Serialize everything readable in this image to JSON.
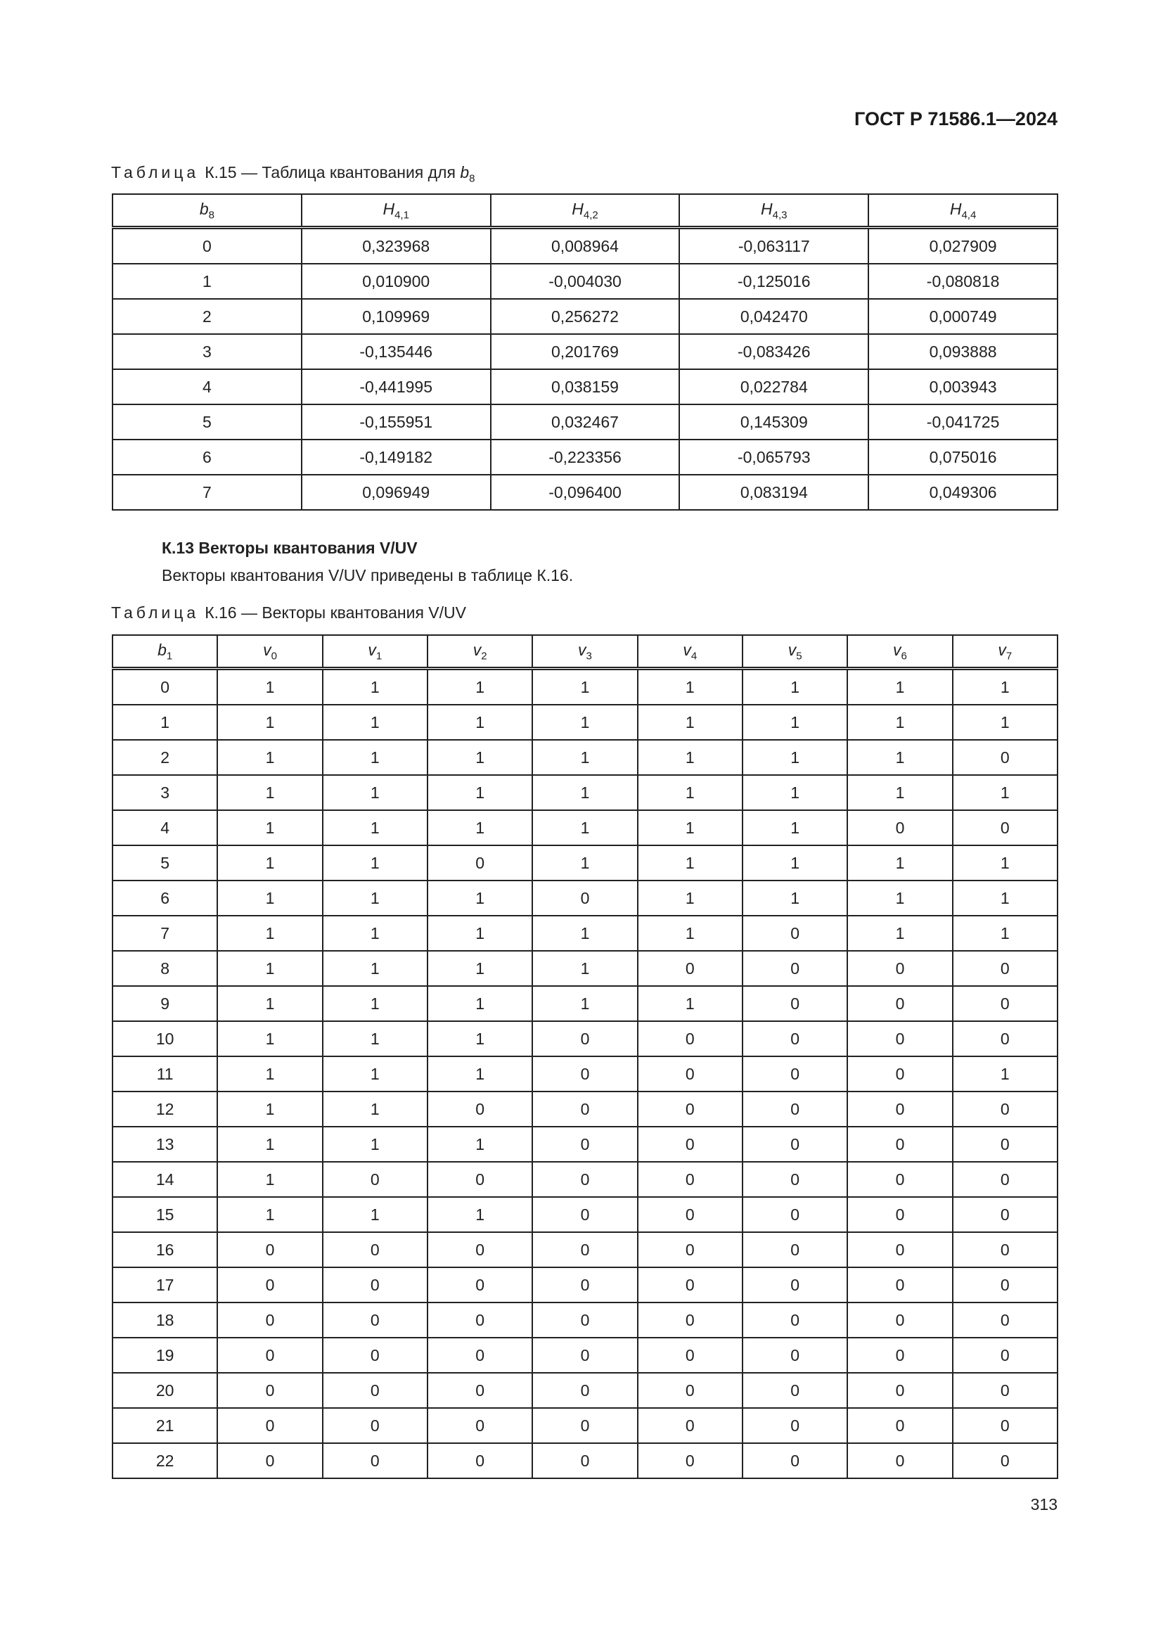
{
  "header": {
    "doc_code": "ГОСТ Р 71586.1—2024"
  },
  "table15": {
    "caption_label": "Таблица",
    "caption_text": "К.15 — Таблица квантования для",
    "caption_var": {
      "base": "b",
      "sub": "8"
    },
    "columns": [
      {
        "base": "b",
        "sub": "8"
      },
      {
        "base": "H",
        "sub": "4,1"
      },
      {
        "base": "H",
        "sub": "4,2"
      },
      {
        "base": "H",
        "sub": "4,3"
      },
      {
        "base": "H",
        "sub": "4,4"
      }
    ],
    "rows": [
      [
        "0",
        "0,323968",
        "0,008964",
        "-0,063117",
        "0,027909"
      ],
      [
        "1",
        "0,010900",
        "-0,004030",
        "-0,125016",
        "-0,080818"
      ],
      [
        "2",
        "0,109969",
        "0,256272",
        "0,042470",
        "0,000749"
      ],
      [
        "3",
        "-0,135446",
        "0,201769",
        "-0,083426",
        "0,093888"
      ],
      [
        "4",
        "-0,441995",
        "0,038159",
        "0,022784",
        "0,003943"
      ],
      [
        "5",
        "-0,155951",
        "0,032467",
        "0,145309",
        "-0,041725"
      ],
      [
        "6",
        "-0,149182",
        "-0,223356",
        "-0,065793",
        "0,075016"
      ],
      [
        "7",
        "0,096949",
        "-0,096400",
        "0,083194",
        "0,049306"
      ]
    ]
  },
  "section": {
    "heading": "К.13 Векторы квантования V/UV",
    "text": "Векторы квантования V/UV приведены в таблице К.16."
  },
  "table16": {
    "caption_label": "Таблица",
    "caption_text": "К.16 — Векторы квантования V/UV",
    "columns": [
      {
        "base": "b",
        "sub": "1"
      },
      {
        "base": "v",
        "sub": "0"
      },
      {
        "base": "v",
        "sub": "1"
      },
      {
        "base": "v",
        "sub": "2"
      },
      {
        "base": "v",
        "sub": "3"
      },
      {
        "base": "v",
        "sub": "4"
      },
      {
        "base": "v",
        "sub": "5"
      },
      {
        "base": "v",
        "sub": "6"
      },
      {
        "base": "v",
        "sub": "7"
      }
    ],
    "rows": [
      [
        "0",
        "1",
        "1",
        "1",
        "1",
        "1",
        "1",
        "1",
        "1"
      ],
      [
        "1",
        "1",
        "1",
        "1",
        "1",
        "1",
        "1",
        "1",
        "1"
      ],
      [
        "2",
        "1",
        "1",
        "1",
        "1",
        "1",
        "1",
        "1",
        "0"
      ],
      [
        "3",
        "1",
        "1",
        "1",
        "1",
        "1",
        "1",
        "1",
        "1"
      ],
      [
        "4",
        "1",
        "1",
        "1",
        "1",
        "1",
        "1",
        "0",
        "0"
      ],
      [
        "5",
        "1",
        "1",
        "0",
        "1",
        "1",
        "1",
        "1",
        "1"
      ],
      [
        "6",
        "1",
        "1",
        "1",
        "0",
        "1",
        "1",
        "1",
        "1"
      ],
      [
        "7",
        "1",
        "1",
        "1",
        "1",
        "1",
        "0",
        "1",
        "1"
      ],
      [
        "8",
        "1",
        "1",
        "1",
        "1",
        "0",
        "0",
        "0",
        "0"
      ],
      [
        "9",
        "1",
        "1",
        "1",
        "1",
        "1",
        "0",
        "0",
        "0"
      ],
      [
        "10",
        "1",
        "1",
        "1",
        "0",
        "0",
        "0",
        "0",
        "0"
      ],
      [
        "11",
        "1",
        "1",
        "1",
        "0",
        "0",
        "0",
        "0",
        "1"
      ],
      [
        "12",
        "1",
        "1",
        "0",
        "0",
        "0",
        "0",
        "0",
        "0"
      ],
      [
        "13",
        "1",
        "1",
        "1",
        "0",
        "0",
        "0",
        "0",
        "0"
      ],
      [
        "14",
        "1",
        "0",
        "0",
        "0",
        "0",
        "0",
        "0",
        "0"
      ],
      [
        "15",
        "1",
        "1",
        "1",
        "0",
        "0",
        "0",
        "0",
        "0"
      ],
      [
        "16",
        "0",
        "0",
        "0",
        "0",
        "0",
        "0",
        "0",
        "0"
      ],
      [
        "17",
        "0",
        "0",
        "0",
        "0",
        "0",
        "0",
        "0",
        "0"
      ],
      [
        "18",
        "0",
        "0",
        "0",
        "0",
        "0",
        "0",
        "0",
        "0"
      ],
      [
        "19",
        "0",
        "0",
        "0",
        "0",
        "0",
        "0",
        "0",
        "0"
      ],
      [
        "20",
        "0",
        "0",
        "0",
        "0",
        "0",
        "0",
        "0",
        "0"
      ],
      [
        "21",
        "0",
        "0",
        "0",
        "0",
        "0",
        "0",
        "0",
        "0"
      ],
      [
        "22",
        "0",
        "0",
        "0",
        "0",
        "0",
        "0",
        "0",
        "0"
      ]
    ]
  },
  "footer": {
    "page_number": "313"
  }
}
